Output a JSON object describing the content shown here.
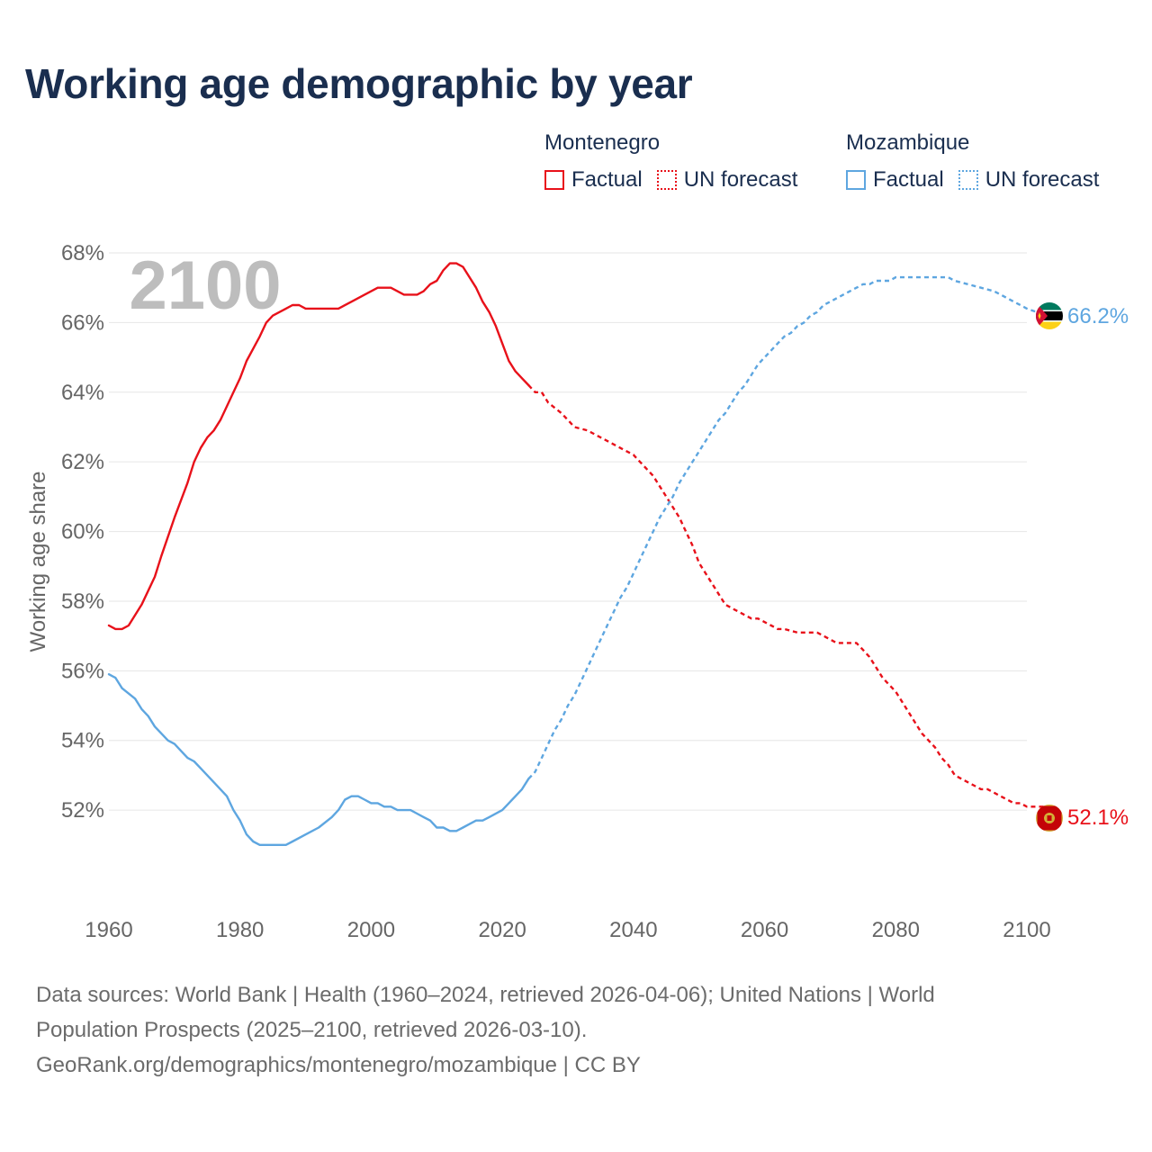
{
  "title": "Working age demographic by year",
  "legend": {
    "groups": [
      {
        "country": "Montenegro",
        "color": "#e8111a",
        "factual_label": "Factual",
        "forecast_label": "UN forecast"
      },
      {
        "country": "Mozambique",
        "color": "#5ea6e0",
        "factual_label": "Factual",
        "forecast_label": "UN forecast"
      }
    ]
  },
  "year_watermark": "2100",
  "end_labels": {
    "montenegro": "52.1%",
    "mozambique": "66.2%"
  },
  "footer": {
    "line1": "Data sources: World Bank | Health (1960–2024, retrieved 2026-04-06); United Nations | World",
    "line2": "Population Prospects (2025–2100, retrieved 2026-03-10).",
    "line3": "GeoRank.org/demographics/montenegro/mozambique | CC BY"
  },
  "chart_data": {
    "type": "line",
    "title": "Working age demographic by year",
    "xlabel": "",
    "ylabel": "Working age share",
    "xlim": [
      1960,
      2100
    ],
    "ylim": [
      49.6,
      68
    ],
    "x_ticks": [
      1960,
      1980,
      2000,
      2020,
      2040,
      2060,
      2080,
      2100
    ],
    "x_tick_labels": [
      "1960",
      "1980",
      "2000",
      "2020",
      "2040",
      "2060",
      "2080",
      "2100"
    ],
    "y_ticks": [
      52,
      54,
      56,
      58,
      60,
      62,
      64,
      66,
      68
    ],
    "y_tick_labels": [
      "52%",
      "54%",
      "56%",
      "58%",
      "60%",
      "62%",
      "64%",
      "66%",
      "68%"
    ],
    "grid": true,
    "factual_range": [
      1960,
      2024
    ],
    "forecast_range": [
      2024,
      2100
    ],
    "series": [
      {
        "name": "Montenegro",
        "color": "#e8111a",
        "points": [
          [
            1960,
            57.3
          ],
          [
            1961,
            57.2
          ],
          [
            1962,
            57.2
          ],
          [
            1963,
            57.3
          ],
          [
            1965,
            57.9
          ],
          [
            1967,
            58.7
          ],
          [
            1968,
            59.3
          ],
          [
            1970,
            60.4
          ],
          [
            1972,
            61.4
          ],
          [
            1973,
            62.0
          ],
          [
            1974,
            62.4
          ],
          [
            1975,
            62.7
          ],
          [
            1976,
            62.9
          ],
          [
            1977,
            63.2
          ],
          [
            1979,
            64.0
          ],
          [
            1980,
            64.4
          ],
          [
            1981,
            64.9
          ],
          [
            1983,
            65.6
          ],
          [
            1984,
            66.0
          ],
          [
            1985,
            66.2
          ],
          [
            1986,
            66.3
          ],
          [
            1987,
            66.4
          ],
          [
            1988,
            66.5
          ],
          [
            1989,
            66.5
          ],
          [
            1990,
            66.4
          ],
          [
            1992,
            66.4
          ],
          [
            1995,
            66.4
          ],
          [
            1997,
            66.6
          ],
          [
            1999,
            66.8
          ],
          [
            2000,
            66.9
          ],
          [
            2001,
            67.0
          ],
          [
            2003,
            67.0
          ],
          [
            2004,
            66.9
          ],
          [
            2005,
            66.8
          ],
          [
            2007,
            66.8
          ],
          [
            2008,
            66.9
          ],
          [
            2009,
            67.1
          ],
          [
            2010,
            67.2
          ],
          [
            2011,
            67.5
          ],
          [
            2012,
            67.7
          ],
          [
            2013,
            67.7
          ],
          [
            2014,
            67.6
          ],
          [
            2016,
            67.0
          ],
          [
            2017,
            66.6
          ],
          [
            2018,
            66.3
          ],
          [
            2019,
            65.9
          ],
          [
            2020,
            65.4
          ],
          [
            2021,
            64.9
          ],
          [
            2022,
            64.6
          ],
          [
            2023,
            64.4
          ],
          [
            2024,
            64.2
          ],
          [
            2025,
            64.0
          ],
          [
            2026,
            64.0
          ],
          [
            2027,
            63.7
          ],
          [
            2029,
            63.4
          ],
          [
            2030,
            63.2
          ],
          [
            2031,
            63.0
          ],
          [
            2033,
            62.9
          ],
          [
            2035,
            62.7
          ],
          [
            2037,
            62.5
          ],
          [
            2039,
            62.3
          ],
          [
            2040,
            62.2
          ],
          [
            2041,
            62.0
          ],
          [
            2042,
            61.8
          ],
          [
            2043,
            61.6
          ],
          [
            2045,
            61.0
          ],
          [
            2046,
            60.7
          ],
          [
            2047,
            60.4
          ],
          [
            2048,
            60.0
          ],
          [
            2049,
            59.6
          ],
          [
            2050,
            59.1
          ],
          [
            2051,
            58.8
          ],
          [
            2052,
            58.5
          ],
          [
            2053,
            58.2
          ],
          [
            2054,
            57.9
          ],
          [
            2055,
            57.8
          ],
          [
            2056,
            57.7
          ],
          [
            2057,
            57.6
          ],
          [
            2058,
            57.5
          ],
          [
            2059,
            57.5
          ],
          [
            2060,
            57.4
          ],
          [
            2061,
            57.3
          ],
          [
            2062,
            57.2
          ],
          [
            2063,
            57.2
          ],
          [
            2065,
            57.1
          ],
          [
            2068,
            57.1
          ],
          [
            2070,
            56.9
          ],
          [
            2071,
            56.8
          ],
          [
            2074,
            56.8
          ],
          [
            2075,
            56.6
          ],
          [
            2076,
            56.4
          ],
          [
            2077,
            56.1
          ],
          [
            2078,
            55.8
          ],
          [
            2080,
            55.4
          ],
          [
            2081,
            55.1
          ],
          [
            2082,
            54.8
          ],
          [
            2083,
            54.5
          ],
          [
            2084,
            54.2
          ],
          [
            2085,
            54.0
          ],
          [
            2086,
            53.8
          ],
          [
            2087,
            53.5
          ],
          [
            2088,
            53.3
          ],
          [
            2089,
            53.0
          ],
          [
            2090,
            52.9
          ],
          [
            2092,
            52.7
          ],
          [
            2093,
            52.6
          ],
          [
            2094,
            52.6
          ],
          [
            2095,
            52.5
          ],
          [
            2096,
            52.4
          ],
          [
            2097,
            52.3
          ],
          [
            2098,
            52.2
          ],
          [
            2099,
            52.2
          ],
          [
            2100,
            52.1
          ],
          [
            2103,
            52.1
          ]
        ]
      },
      {
        "name": "Mozambique",
        "color": "#5ea6e0",
        "points": [
          [
            1960,
            55.9
          ],
          [
            1961,
            55.8
          ],
          [
            1962,
            55.5
          ],
          [
            1964,
            55.2
          ],
          [
            1965,
            54.9
          ],
          [
            1966,
            54.7
          ],
          [
            1967,
            54.4
          ],
          [
            1969,
            54.0
          ],
          [
            1970,
            53.9
          ],
          [
            1971,
            53.7
          ],
          [
            1972,
            53.5
          ],
          [
            1973,
            53.4
          ],
          [
            1974,
            53.2
          ],
          [
            1975,
            53.0
          ],
          [
            1976,
            52.8
          ],
          [
            1978,
            52.4
          ],
          [
            1979,
            52.0
          ],
          [
            1980,
            51.7
          ],
          [
            1981,
            51.3
          ],
          [
            1982,
            51.1
          ],
          [
            1983,
            51.0
          ],
          [
            1987,
            51.0
          ],
          [
            1988,
            51.1
          ],
          [
            1990,
            51.3
          ],
          [
            1992,
            51.5
          ],
          [
            1994,
            51.8
          ],
          [
            1995,
            52.0
          ],
          [
            1996,
            52.3
          ],
          [
            1997,
            52.4
          ],
          [
            1998,
            52.4
          ],
          [
            1999,
            52.3
          ],
          [
            2000,
            52.2
          ],
          [
            2001,
            52.2
          ],
          [
            2002,
            52.1
          ],
          [
            2003,
            52.1
          ],
          [
            2004,
            52.0
          ],
          [
            2006,
            52.0
          ],
          [
            2007,
            51.9
          ],
          [
            2008,
            51.8
          ],
          [
            2009,
            51.7
          ],
          [
            2010,
            51.5
          ],
          [
            2011,
            51.5
          ],
          [
            2012,
            51.4
          ],
          [
            2013,
            51.4
          ],
          [
            2014,
            51.5
          ],
          [
            2015,
            51.6
          ],
          [
            2016,
            51.7
          ],
          [
            2017,
            51.7
          ],
          [
            2018,
            51.8
          ],
          [
            2020,
            52.0
          ],
          [
            2021,
            52.2
          ],
          [
            2022,
            52.4
          ],
          [
            2023,
            52.6
          ],
          [
            2024,
            52.9
          ],
          [
            2025,
            53.1
          ],
          [
            2026,
            53.5
          ],
          [
            2027,
            53.9
          ],
          [
            2028,
            54.3
          ],
          [
            2029,
            54.6
          ],
          [
            2030,
            55.0
          ],
          [
            2031,
            55.3
          ],
          [
            2032,
            55.7
          ],
          [
            2033,
            56.1
          ],
          [
            2034,
            56.5
          ],
          [
            2035,
            56.9
          ],
          [
            2036,
            57.3
          ],
          [
            2037,
            57.7
          ],
          [
            2038,
            58.1
          ],
          [
            2039,
            58.4
          ],
          [
            2040,
            58.8
          ],
          [
            2041,
            59.2
          ],
          [
            2042,
            59.6
          ],
          [
            2043,
            60.0
          ],
          [
            2044,
            60.4
          ],
          [
            2045,
            60.7
          ],
          [
            2046,
            61.0
          ],
          [
            2047,
            61.4
          ],
          [
            2048,
            61.7
          ],
          [
            2049,
            62.0
          ],
          [
            2050,
            62.3
          ],
          [
            2051,
            62.6
          ],
          [
            2052,
            62.9
          ],
          [
            2053,
            63.2
          ],
          [
            2054,
            63.4
          ],
          [
            2055,
            63.7
          ],
          [
            2056,
            64.0
          ],
          [
            2057,
            64.2
          ],
          [
            2058,
            64.5
          ],
          [
            2059,
            64.8
          ],
          [
            2060,
            65.0
          ],
          [
            2061,
            65.2
          ],
          [
            2062,
            65.4
          ],
          [
            2063,
            65.6
          ],
          [
            2064,
            65.7
          ],
          [
            2065,
            65.9
          ],
          [
            2066,
            66.0
          ],
          [
            2067,
            66.2
          ],
          [
            2068,
            66.3
          ],
          [
            2069,
            66.5
          ],
          [
            2070,
            66.6
          ],
          [
            2071,
            66.7
          ],
          [
            2073,
            66.9
          ],
          [
            2074,
            67.0
          ],
          [
            2075,
            67.1
          ],
          [
            2076,
            67.1
          ],
          [
            2077,
            67.2
          ],
          [
            2079,
            67.2
          ],
          [
            2080,
            67.3
          ],
          [
            2088,
            67.3
          ],
          [
            2089,
            67.2
          ],
          [
            2091,
            67.1
          ],
          [
            2093,
            67.0
          ],
          [
            2095,
            66.9
          ],
          [
            2096,
            66.8
          ],
          [
            2097,
            66.7
          ],
          [
            2098,
            66.6
          ],
          [
            2099,
            66.5
          ],
          [
            2100,
            66.4
          ],
          [
            2103,
            66.2
          ]
        ]
      }
    ]
  }
}
